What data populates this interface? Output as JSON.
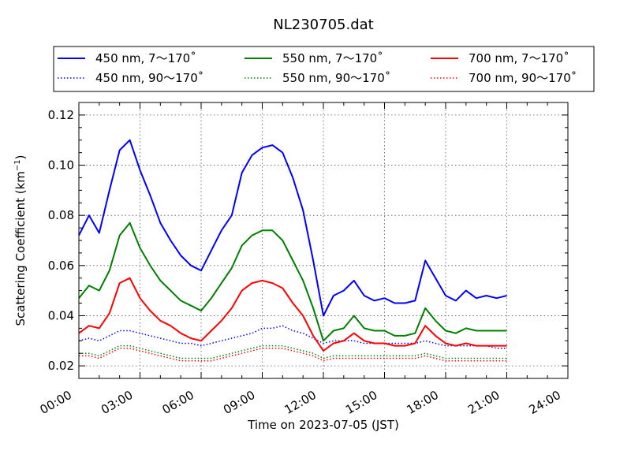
{
  "chart_data": {
    "type": "line",
    "title": "NL230705.dat",
    "xlabel": "Time on 2023-07-05 (JST)",
    "ylabel_main": "Scattering Coefficient (km",
    "ylabel_sup": "−1",
    "ylabel_close": ")",
    "xlim": [
      0,
      24
    ],
    "ylim": [
      0.015,
      0.125
    ],
    "x_ticks": [
      0,
      3,
      6,
      9,
      12,
      15,
      18,
      21,
      24
    ],
    "x_tick_labels": [
      "00:00",
      "03:00",
      "06:00",
      "09:00",
      "12:00",
      "15:00",
      "18:00",
      "21:00",
      "24:00"
    ],
    "y_ticks": [
      0.02,
      0.04,
      0.06,
      0.08,
      0.1,
      0.12
    ],
    "y_tick_labels": [
      "0.02",
      "0.04",
      "0.06",
      "0.08",
      "0.10",
      "0.12"
    ],
    "grid": true,
    "legend_position": "top",
    "x": [
      0.0,
      0.5,
      1.0,
      1.5,
      2.0,
      2.5,
      3.0,
      3.5,
      4.0,
      4.5,
      5.0,
      5.5,
      6.0,
      6.5,
      7.0,
      7.5,
      8.0,
      8.5,
      9.0,
      9.5,
      10.0,
      10.5,
      11.0,
      11.5,
      12.0,
      12.5,
      13.0,
      13.5,
      14.0,
      14.5,
      15.0,
      15.5,
      16.0,
      16.5,
      17.0,
      17.5,
      18.0,
      18.5,
      19.0,
      19.5,
      20.0,
      20.5,
      21.0
    ],
    "series": [
      {
        "name": "450 nm, 7～170˚",
        "color": "#0000ff",
        "style": "solid",
        "values": [
          0.072,
          0.08,
          0.073,
          0.09,
          0.106,
          0.11,
          0.098,
          0.088,
          0.077,
          0.07,
          0.064,
          0.06,
          0.058,
          0.066,
          0.074,
          0.08,
          0.097,
          0.104,
          0.107,
          0.108,
          0.105,
          0.095,
          0.082,
          0.062,
          0.04,
          0.048,
          0.05,
          0.054,
          0.048,
          0.046,
          0.047,
          0.045,
          0.045,
          0.046,
          0.062,
          0.055,
          0.048,
          0.046,
          0.05,
          0.047,
          0.048,
          0.047,
          0.048
        ]
      },
      {
        "name": "450 nm, 90～170˚",
        "color": "#0000ff",
        "style": "dotted",
        "values": [
          0.03,
          0.031,
          0.03,
          0.032,
          0.034,
          0.034,
          0.033,
          0.032,
          0.031,
          0.03,
          0.029,
          0.029,
          0.028,
          0.029,
          0.03,
          0.031,
          0.032,
          0.033,
          0.035,
          0.035,
          0.036,
          0.034,
          0.033,
          0.031,
          0.029,
          0.03,
          0.03,
          0.03,
          0.029,
          0.029,
          0.029,
          0.029,
          0.029,
          0.029,
          0.03,
          0.029,
          0.028,
          0.028,
          0.028,
          0.028,
          0.028,
          0.027,
          0.027
        ]
      },
      {
        "name": "550 nm, 7～170˚",
        "color": "#008000",
        "style": "solid",
        "values": [
          0.047,
          0.052,
          0.05,
          0.058,
          0.072,
          0.077,
          0.067,
          0.06,
          0.054,
          0.05,
          0.046,
          0.044,
          0.042,
          0.047,
          0.053,
          0.059,
          0.068,
          0.072,
          0.074,
          0.074,
          0.07,
          0.062,
          0.054,
          0.043,
          0.03,
          0.034,
          0.035,
          0.04,
          0.035,
          0.034,
          0.034,
          0.032,
          0.032,
          0.033,
          0.043,
          0.038,
          0.034,
          0.033,
          0.035,
          0.034,
          0.034,
          0.034,
          0.034
        ]
      },
      {
        "name": "550 nm, 90～170˚",
        "color": "#008000",
        "style": "dotted",
        "values": [
          0.025,
          0.025,
          0.024,
          0.026,
          0.028,
          0.028,
          0.027,
          0.026,
          0.025,
          0.024,
          0.023,
          0.023,
          0.023,
          0.023,
          0.024,
          0.025,
          0.026,
          0.027,
          0.028,
          0.028,
          0.028,
          0.027,
          0.026,
          0.025,
          0.023,
          0.024,
          0.024,
          0.024,
          0.024,
          0.024,
          0.024,
          0.024,
          0.024,
          0.024,
          0.025,
          0.024,
          0.023,
          0.023,
          0.023,
          0.023,
          0.023,
          0.023,
          0.023
        ]
      },
      {
        "name": "700 nm, 7～170˚",
        "color": "#ff0000",
        "style": "solid",
        "values": [
          0.033,
          0.036,
          0.035,
          0.041,
          0.053,
          0.055,
          0.047,
          0.042,
          0.038,
          0.036,
          0.033,
          0.031,
          0.03,
          0.034,
          0.038,
          0.043,
          0.05,
          0.053,
          0.054,
          0.053,
          0.051,
          0.045,
          0.04,
          0.032,
          0.026,
          0.029,
          0.03,
          0.033,
          0.03,
          0.029,
          0.029,
          0.028,
          0.028,
          0.029,
          0.036,
          0.032,
          0.029,
          0.028,
          0.029,
          0.028,
          0.028,
          0.028,
          0.028
        ]
      },
      {
        "name": "700 nm, 90～170˚",
        "color": "#ff0000",
        "style": "dotted",
        "values": [
          0.024,
          0.024,
          0.023,
          0.025,
          0.027,
          0.027,
          0.026,
          0.025,
          0.024,
          0.023,
          0.022,
          0.022,
          0.022,
          0.022,
          0.023,
          0.024,
          0.025,
          0.026,
          0.027,
          0.027,
          0.027,
          0.026,
          0.025,
          0.024,
          0.022,
          0.023,
          0.023,
          0.023,
          0.023,
          0.023,
          0.023,
          0.023,
          0.023,
          0.023,
          0.024,
          0.023,
          0.022,
          0.022,
          0.022,
          0.022,
          0.022,
          0.022,
          0.022
        ]
      }
    ]
  }
}
